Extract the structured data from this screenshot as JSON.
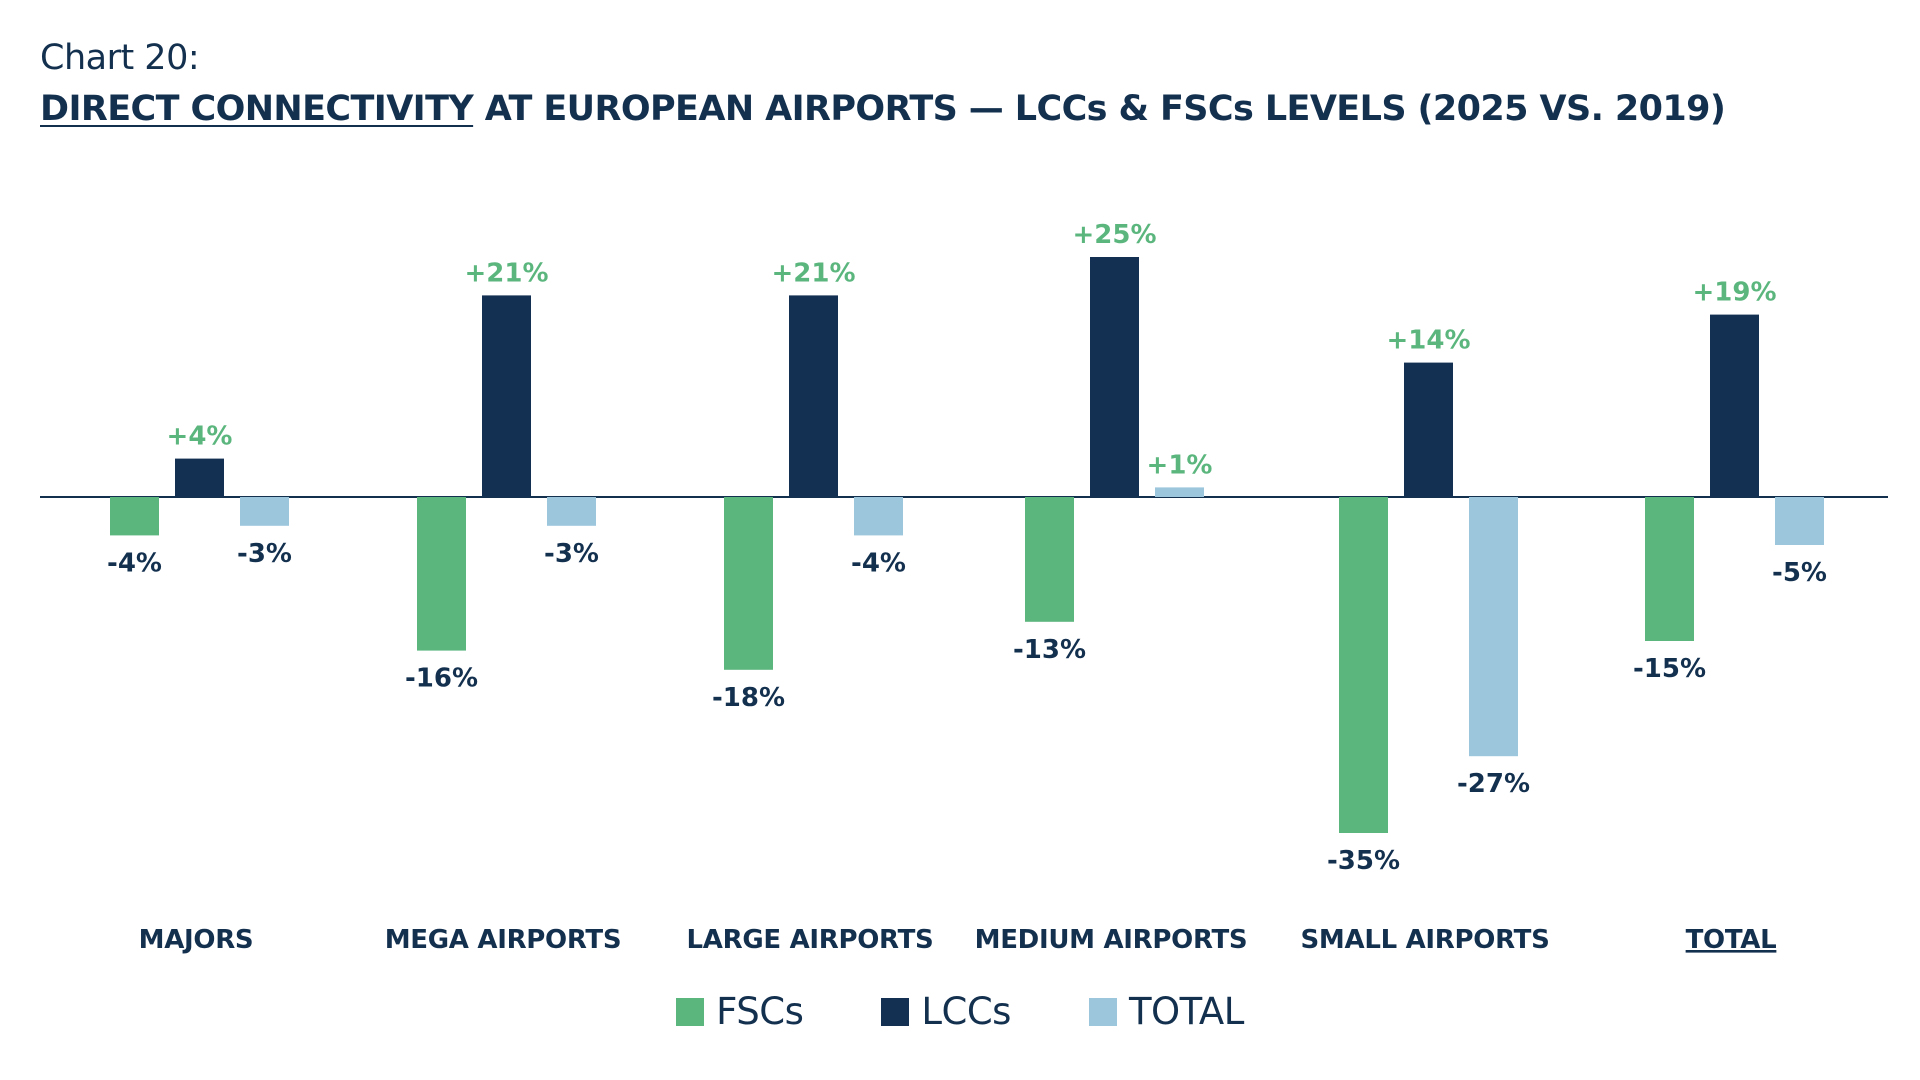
{
  "header": {
    "subtitle": "Chart 20:",
    "title_underlined": "DIRECT CONNECTIVITY",
    "title_rest": " AT EUROPEAN AIRPORTS — LCCs & FSCs LEVELS (2025 VS. 2019)"
  },
  "colors": {
    "fscs": "#5bb67e",
    "lccs": "#132f52",
    "total": "#9cc6dc",
    "positive_label": "#5bb67e",
    "negative_label": "#13304f",
    "axis": "#13304f"
  },
  "chart_data": {
    "type": "bar",
    "categories": [
      "MAJORS",
      "MEGA AIRPORTS",
      "LARGE AIRPORTS",
      "MEDIUM AIRPORTS",
      "SMALL AIRPORTS",
      "TOTAL"
    ],
    "underlined_categories": [
      "TOTAL"
    ],
    "series": [
      {
        "name": "FSCs",
        "values": [
          -4,
          -16,
          -18,
          -13,
          -35,
          -15
        ],
        "labels": [
          "-4%",
          "-16%",
          "-18%",
          "-13%",
          "-35%",
          "-15%"
        ]
      },
      {
        "name": "LCCs",
        "values": [
          4,
          21,
          21,
          25,
          14,
          19
        ],
        "labels": [
          "+4%",
          "+21%",
          "+21%",
          "+25%",
          "+14%",
          "+19%"
        ]
      },
      {
        "name": "TOTAL",
        "values": [
          -3,
          -3,
          -4,
          1,
          -27,
          -5
        ],
        "labels": [
          "-3%",
          "-3%",
          "-4%",
          "+1%",
          "-27%",
          "-5%"
        ]
      }
    ],
    "unit": "%",
    "legend": "bottom-center",
    "grid": false
  }
}
